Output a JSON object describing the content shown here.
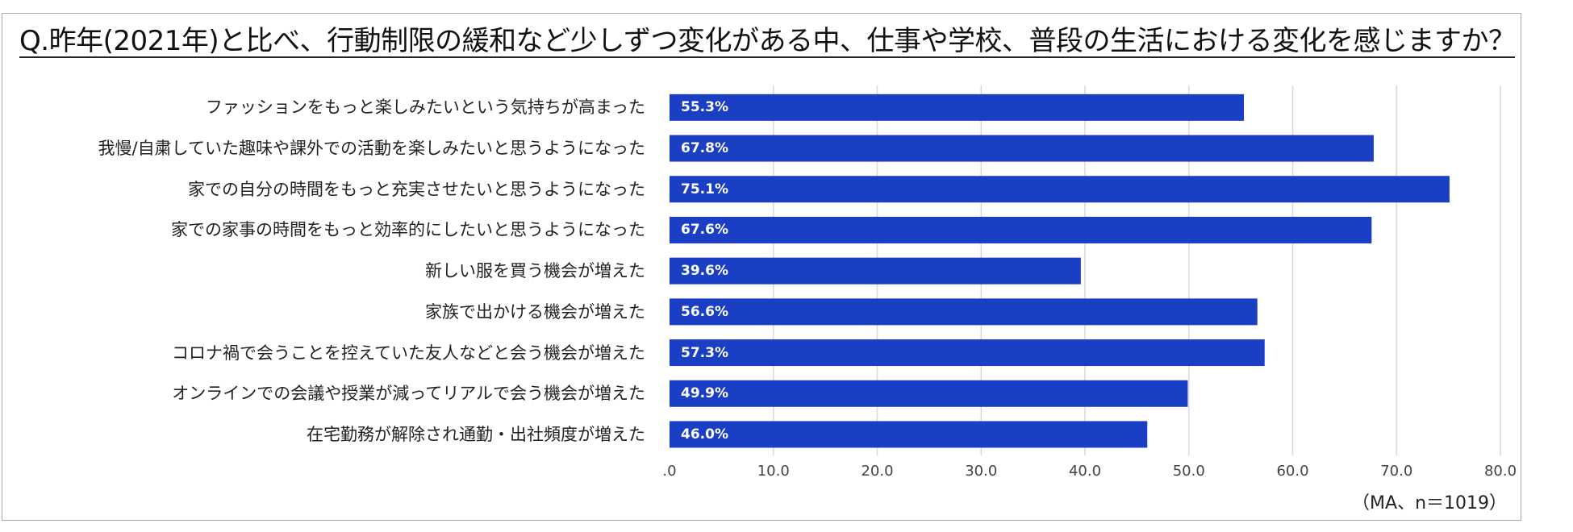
{
  "chart_data": {
    "type": "bar",
    "orientation": "horizontal",
    "title": "Q.昨年(2021年)と比べ、行動制限の緩和など少しずつ変化がある中、仕事や学校、普段の生活における変化を感じますか？",
    "categories": [
      "ファッションをもっと楽しみたいという気持ちが高まった",
      "我慢/自粛していた趣味や課外での活動を楽しみたいと思うようになった",
      "家での自分の時間をもっと充実させたいと思うようになった",
      "家での家事の時間をもっと効率的にしたいと思うようになった",
      "新しい服を買う機会が増えた",
      "家族で出かける機会が増えた",
      "コロナ禍で会うことを控えていた友人などと会う機会が増えた",
      "オンラインでの会議や授業が減ってリアルで会う機会が増えた",
      "在宅勤務が解除され通勤・出社頻度が増えた"
    ],
    "values": [
      55.3,
      67.8,
      75.1,
      67.6,
      39.6,
      56.6,
      57.3,
      49.9,
      46.0
    ],
    "value_labels": [
      "55.3%",
      "67.8%",
      "75.1%",
      "67.6%",
      "39.6%",
      "56.6%",
      "57.3%",
      "49.9%",
      "46.0%"
    ],
    "xlim": [
      0,
      80
    ],
    "xticks": [
      0,
      10,
      20,
      30,
      40,
      50,
      60,
      70,
      80
    ],
    "xtick_labels": [
      ".0",
      "10.0",
      "20.0",
      "30.0",
      "40.0",
      "50.0",
      "60.0",
      "70.0",
      "80.0"
    ],
    "grid": true,
    "bar_color": "#1a3fc4",
    "grid_color": "#d9d9d9",
    "note": "（MA、n＝1019）"
  }
}
